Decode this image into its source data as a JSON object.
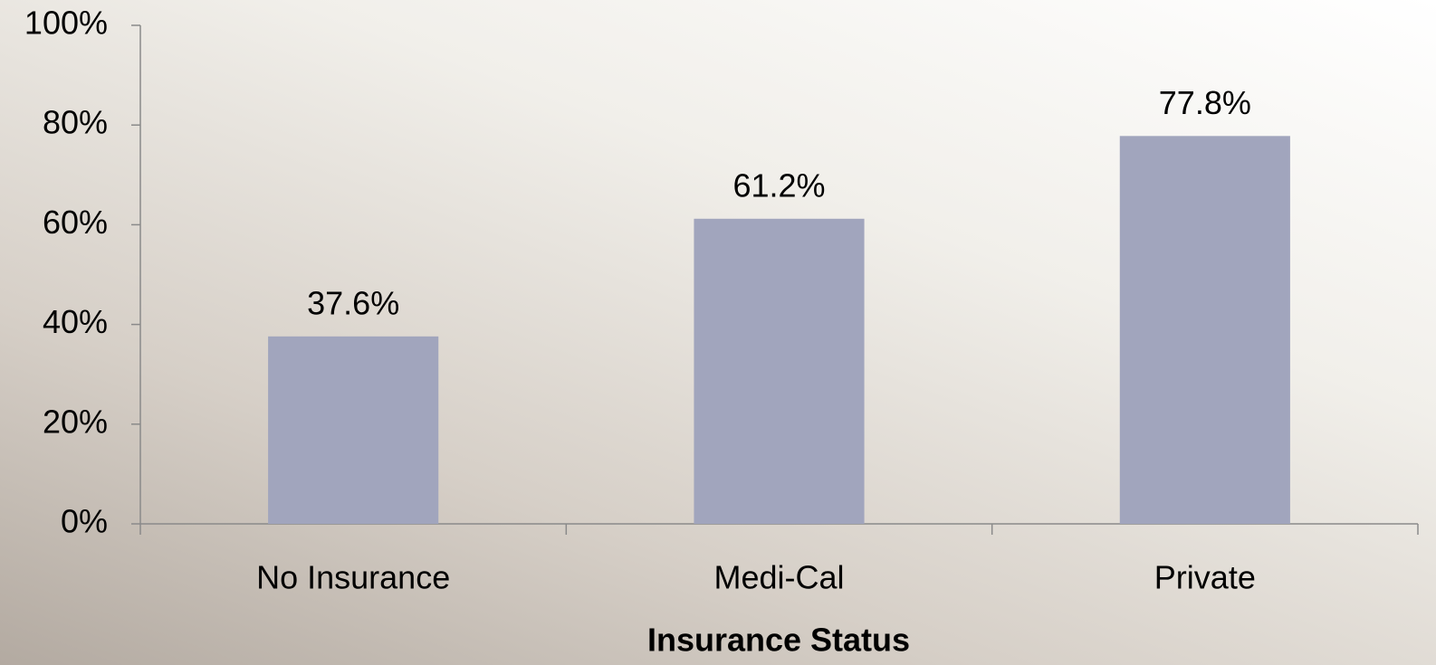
{
  "chart_data": {
    "type": "bar",
    "x_label": "Insurance Status",
    "categories": [
      "No Insurance",
      "Medi-Cal",
      "Private"
    ],
    "values": [
      37.6,
      61.2,
      77.8
    ],
    "value_labels": [
      "37.6%",
      "61.2%",
      "77.8%"
    ],
    "color": "#a1a5bd",
    "ylim": [
      0,
      100
    ],
    "yticks": [
      {
        "value": 0,
        "label": "0%"
      },
      {
        "value": 20,
        "label": "20%"
      },
      {
        "value": 40,
        "label": "40%"
      },
      {
        "value": 60,
        "label": "60%"
      },
      {
        "value": 80,
        "label": "80%"
      },
      {
        "value": 100,
        "label": "100%"
      }
    ],
    "grid": false
  }
}
